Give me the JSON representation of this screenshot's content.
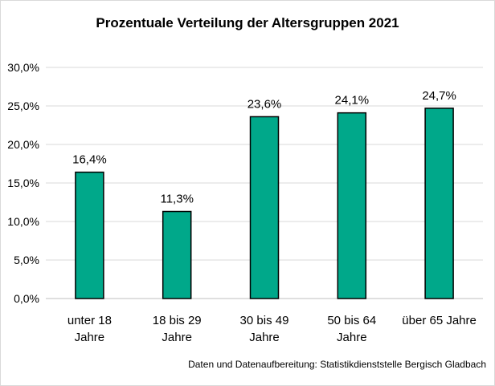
{
  "chart_data": {
    "type": "bar",
    "title": "Prozentuale Verteilung der Altersgruppen 2021",
    "categories": [
      [
        "unter 18",
        "Jahre"
      ],
      [
        "18 bis 29",
        "Jahre"
      ],
      [
        "30 bis 49",
        "Jahre"
      ],
      [
        "50 bis 64",
        "Jahre"
      ],
      [
        "über 65 Jahre"
      ]
    ],
    "values": [
      16.4,
      11.3,
      23.6,
      24.1,
      24.7
    ],
    "data_labels": [
      "16,4%",
      "11,3%",
      "23,6%",
      "24,1%",
      "24,7%"
    ],
    "ylim": [
      0,
      30
    ],
    "yticks": [
      "0,0%",
      "5,0%",
      "10,0%",
      "15,0%",
      "20,0%",
      "25,0%",
      "30,0%"
    ],
    "grid": true,
    "legend": "none",
    "bar_color": "#00A88A",
    "bar_edge_color": "#000000"
  },
  "source_note": "Daten und Datenaufbereitung: Statistikdienststelle Bergisch Gladbach"
}
